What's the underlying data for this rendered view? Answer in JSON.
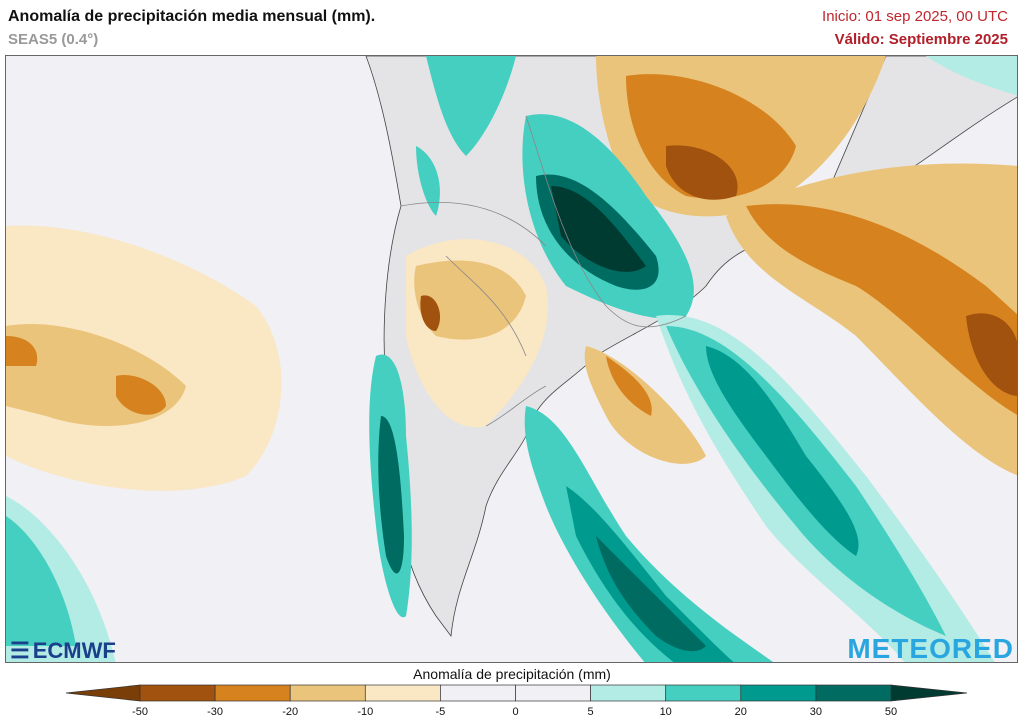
{
  "header": {
    "title": "Anomalía de precipitación media mensual (mm).",
    "model": "SEAS5 (0.4°)",
    "init": "Inicio: 01 sep 2025, 00 UTC",
    "valid": "Válido: Septiembre 2025"
  },
  "map": {
    "colors": {
      "land": "#e4e4e6",
      "ocean": "#f0f0f5",
      "border": "#777777"
    }
  },
  "colorbar": {
    "title": "Anomalía de precipitación (mm)",
    "ticks": [
      "-50",
      "-30",
      "-20",
      "-10",
      "-5",
      "0",
      "5",
      "10",
      "20",
      "30",
      "50"
    ],
    "colors": [
      "#7a3e08",
      "#a0520e",
      "#d6831f",
      "#ebc47c",
      "#fae7c4",
      "#f0f0f5",
      "#f0f0f5",
      "#b3ebe5",
      "#45cfc1",
      "#009a8f",
      "#006b61",
      "#003b32"
    ]
  },
  "logos": {
    "left": "ECMWF",
    "right": "METEORED"
  }
}
